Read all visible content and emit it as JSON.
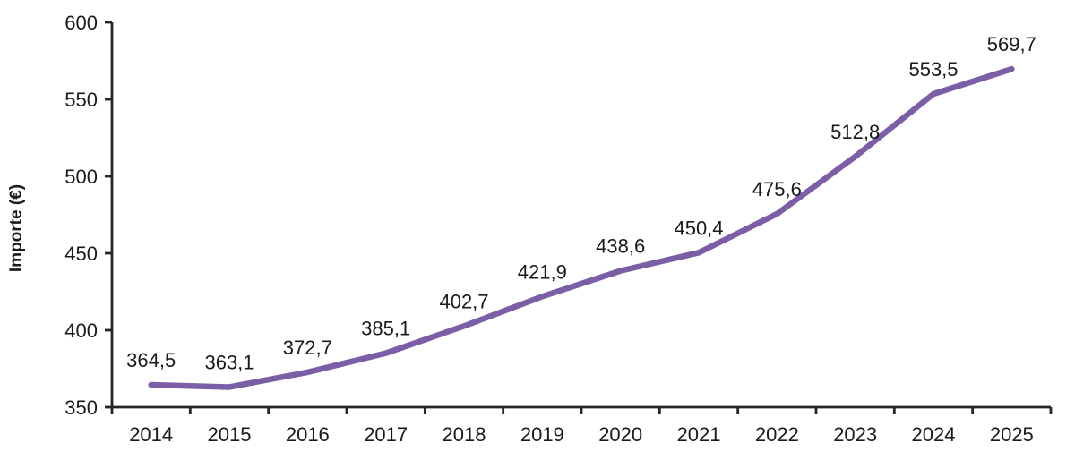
{
  "chart_data": {
    "type": "line",
    "title": "",
    "ylabel": "Importe (€)",
    "xlabel": "",
    "categories": [
      "2014",
      "2015",
      "2016",
      "2017",
      "2018",
      "2019",
      "2020",
      "2021",
      "2022",
      "2023",
      "2024",
      "2025"
    ],
    "series": [
      {
        "name": "Importe",
        "values": [
          364.5,
          363.1,
          372.7,
          385.1,
          402.7,
          421.9,
          438.6,
          450.4,
          475.6,
          512.8,
          553.5,
          569.7
        ],
        "labels": [
          "364,5",
          "363,1",
          "372,7",
          "385,1",
          "402,7",
          "421,9",
          "438,6",
          "450,4",
          "475,6",
          "512,8",
          "553,5",
          "569,7"
        ],
        "color": "#7B5EA6"
      }
    ],
    "ylim": [
      350,
      600
    ],
    "yticks": [
      350,
      400,
      450,
      500,
      550,
      600
    ],
    "grid": false,
    "legend_position": "none",
    "axis_color": "#262626",
    "text_color": "#1a1a1a"
  }
}
